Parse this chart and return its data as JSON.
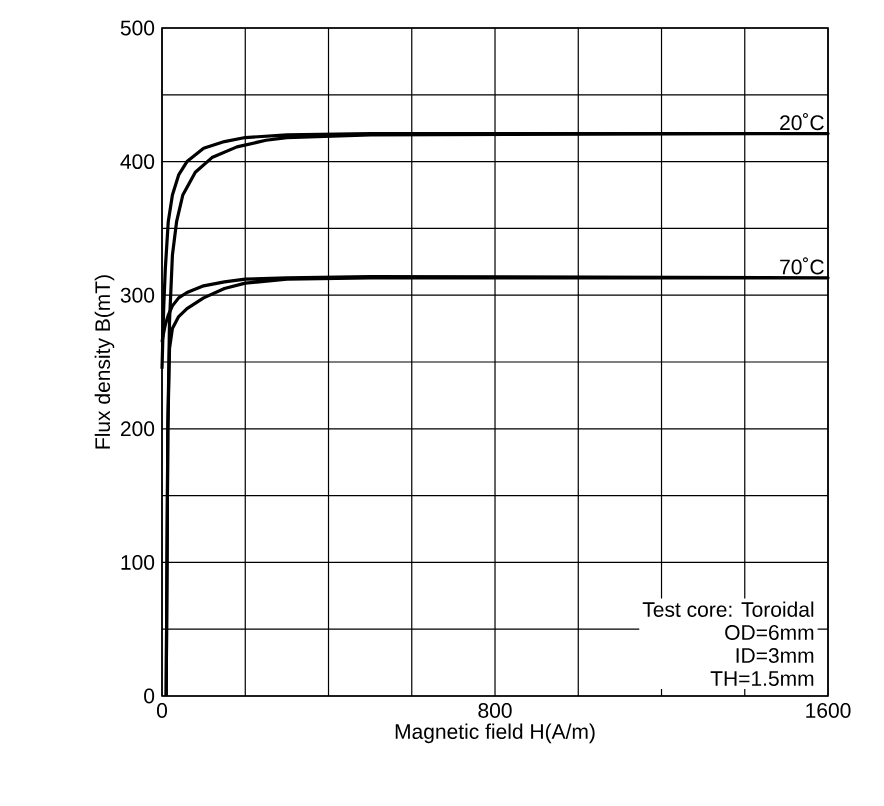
{
  "chart_data": {
    "type": "line",
    "xlabel": "Magnetic field H(A/m)",
    "ylabel": "Flux density B(mT)",
    "series": [
      {
        "name": "20˚C",
        "color": "#000000",
        "x": [
          10,
          12,
          14,
          18,
          25,
          35,
          50,
          80,
          120,
          180,
          250,
          300,
          500,
          1600,
          500,
          300,
          200,
          150,
          100,
          60,
          40,
          25,
          15,
          8,
          4,
          0
        ],
        "values": [
          0,
          100,
          200,
          280,
          330,
          355,
          375,
          392,
          403,
          411,
          416,
          418,
          420,
          421,
          421,
          420,
          418,
          415,
          410,
          400,
          390,
          375,
          355,
          320,
          290,
          245
        ]
      },
      {
        "name": "70˚C",
        "color": "#000000",
        "x": [
          10,
          12,
          14,
          18,
          25,
          40,
          60,
          100,
          150,
          200,
          300,
          500,
          1600,
          500,
          300,
          200,
          150,
          100,
          60,
          40,
          25,
          15,
          8,
          4,
          0
        ],
        "values": [
          0,
          100,
          200,
          260,
          275,
          284,
          290,
          298,
          305,
          309,
          312,
          313,
          313,
          314,
          313,
          312,
          310,
          307,
          302,
          298,
          292,
          285,
          278,
          272,
          265
        ]
      }
    ],
    "xlim": [
      0,
      1600
    ],
    "ylim": [
      0,
      500
    ],
    "xticks": [
      0,
      {
        "value": 200,
        "label": null
      },
      {
        "value": 400,
        "label": null
      },
      {
        "value": 600,
        "label": null
      },
      800,
      {
        "value": 1000,
        "label": null
      },
      {
        "value": 1200,
        "label": null
      },
      {
        "value": 1400,
        "label": null
      },
      1600
    ],
    "yticks": [
      0,
      {
        "value": 50,
        "label": null
      },
      100,
      {
        "value": 150,
        "label": null
      },
      200,
      {
        "value": 250,
        "label": null
      },
      300,
      {
        "value": 350,
        "label": null
      },
      400,
      {
        "value": 450,
        "label": null
      },
      500
    ],
    "grid": true,
    "line_style": "solid",
    "marker": "none",
    "annotations": [
      "Test core: Toroidal",
      "OD=6mm",
      "ID=3mm",
      "TH=1.5mm"
    ]
  }
}
